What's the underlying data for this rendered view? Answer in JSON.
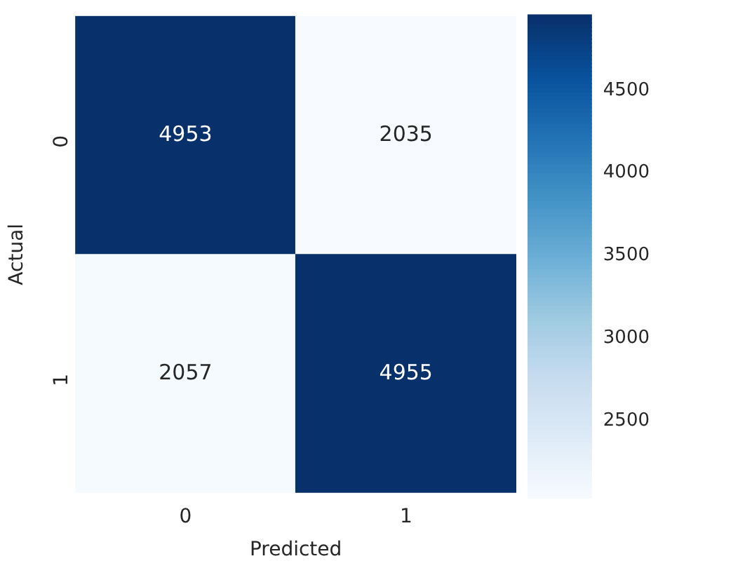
{
  "chart_data": {
    "type": "heatmap",
    "xlabel": "Predicted",
    "ylabel": "Actual",
    "categories": [
      "0",
      "1"
    ],
    "y_categories": [
      "0",
      "1"
    ],
    "cells": [
      [
        4953,
        2035
      ],
      [
        2057,
        4955
      ]
    ],
    "clim": [
      2035,
      4955
    ],
    "cticks": [
      2500,
      3000,
      3500,
      4000,
      4500
    ],
    "data_labels": true
  }
}
